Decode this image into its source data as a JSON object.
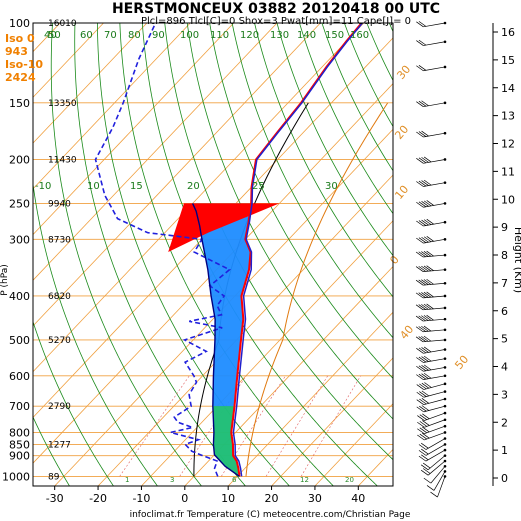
{
  "header": {
    "title": "HERSTMONCEUX 03882 20120418 00 UTC",
    "subtitle": "Plcl=896 Tlcl[C]=0 Shox=3 Pwat[mm]=11 Cape[J]= 0"
  },
  "iso_labels": [
    "Iso 0",
    "943",
    "Iso-10",
    "2424"
  ],
  "footer": "infoclimat.fr Temperature (C) meteocentre.com/Christian Page",
  "yaxis_left_label": "P (hPa)",
  "yaxis_right_label": "Height (Km)",
  "colors": {
    "temperature": "#ff0000",
    "virtual_temperature": "#2020cc",
    "dewpoint": "#2020dd",
    "parcel": "#000080",
    "negative_area": "#1e8cff",
    "positive_area": "#ff0000",
    "isotherm": "#f0a040",
    "dry_adiabat": "#1a8a1a",
    "isobar": "#f0a040"
  },
  "chart_data": {
    "type": "line",
    "diagram": "skew-T log-P",
    "xlim": [
      -35,
      48
    ],
    "ylim_pressure": [
      1050,
      100
    ],
    "x_ticks": [
      "-30",
      "-20",
      "-10",
      "0",
      "10",
      "20",
      "30",
      "40"
    ],
    "pressure_ticks": [
      "100",
      "150",
      "200",
      "250",
      "300",
      "400",
      "500",
      "600",
      "700",
      "800",
      "850",
      "900",
      "1000"
    ],
    "pressure_values": [
      100,
      150,
      200,
      250,
      300,
      400,
      500,
      600,
      700,
      800,
      850,
      900,
      1000
    ],
    "geopotential_labels": [
      {
        "p": 100,
        "label": "16010"
      },
      {
        "p": 150,
        "label": "13350"
      },
      {
        "p": 200,
        "label": "11430"
      },
      {
        "p": 250,
        "label": "9940"
      },
      {
        "p": 300,
        "label": "8730"
      },
      {
        "p": 400,
        "label": "6820"
      },
      {
        "p": 500,
        "label": "5270"
      },
      {
        "p": 700,
        "label": "2790"
      },
      {
        "p": 850,
        "label": "1277"
      },
      {
        "p": 1000,
        "label": "89"
      }
    ],
    "height_ticks_km": [
      "0",
      "1",
      "2",
      "3",
      "4",
      "5",
      "6",
      "7",
      "8",
      "9",
      "10",
      "11",
      "12",
      "13",
      "14",
      "15",
      "16"
    ],
    "dry_adiabat_labels": [
      "-10",
      "10",
      "15",
      "20",
      "25",
      "30",
      "40",
      "50",
      "60",
      "70",
      "80",
      "90",
      "100",
      "110",
      "120",
      "130",
      "140",
      "150",
      "160"
    ],
    "orange_labels": [
      "0",
      "10",
      "20",
      "30",
      "40",
      "50"
    ],
    "mixing_labels": [
      "1",
      "3",
      "6",
      "12",
      "20"
    ],
    "series": [
      {
        "name": "temperature",
        "points": [
          [
            1000,
            10.5
          ],
          [
            960,
            8.5
          ],
          [
            925,
            6.5
          ],
          [
            900,
            4.5
          ],
          [
            850,
            2.0
          ],
          [
            800,
            -1.0
          ],
          [
            700,
            -6.0
          ],
          [
            600,
            -12.0
          ],
          [
            500,
            -19.0
          ],
          [
            450,
            -23.0
          ],
          [
            400,
            -28.5
          ],
          [
            350,
            -32.5
          ],
          [
            320,
            -36.0
          ],
          [
            300,
            -40.0
          ],
          [
            275,
            -43.0
          ],
          [
            250,
            -46.5
          ],
          [
            230,
            -50.0
          ],
          [
            200,
            -55.0
          ],
          [
            175,
            -56.0
          ],
          [
            150,
            -57.0
          ],
          [
            125,
            -59.0
          ],
          [
            110,
            -60.0
          ],
          [
            100,
            -60.5
          ]
        ]
      },
      {
        "name": "virtual_temperature",
        "points": [
          [
            1000,
            11.0
          ],
          [
            960,
            9.0
          ],
          [
            925,
            7.0
          ],
          [
            900,
            5.0
          ],
          [
            850,
            2.5
          ],
          [
            800,
            -0.5
          ],
          [
            700,
            -5.5
          ],
          [
            600,
            -11.5
          ],
          [
            500,
            -18.5
          ],
          [
            450,
            -22.5
          ],
          [
            400,
            -28.0
          ],
          [
            350,
            -32.0
          ],
          [
            320,
            -35.8
          ],
          [
            300,
            -39.8
          ],
          [
            275,
            -42.8
          ],
          [
            250,
            -46.3
          ],
          [
            230,
            -49.8
          ],
          [
            200,
            -54.8
          ],
          [
            175,
            -55.8
          ],
          [
            150,
            -56.8
          ],
          [
            125,
            -58.8
          ],
          [
            110,
            -59.8
          ],
          [
            100,
            -60.3
          ]
        ]
      },
      {
        "name": "dewpoint",
        "points": [
          [
            1000,
            5.5
          ],
          [
            960,
            3.0
          ],
          [
            925,
            2.0
          ],
          [
            900,
            -2.5
          ],
          [
            880,
            -6.0
          ],
          [
            850,
            -9.0
          ],
          [
            830,
            -7.0
          ],
          [
            800,
            -15.0
          ],
          [
            780,
            -11.0
          ],
          [
            760,
            -15.5
          ],
          [
            740,
            -17.5
          ],
          [
            700,
            -16.0
          ],
          [
            660,
            -19.0
          ],
          [
            620,
            -20.0
          ],
          [
            600,
            -22.0
          ],
          [
            560,
            -27.0
          ],
          [
            530,
            -24.5
          ],
          [
            500,
            -32.0
          ],
          [
            470,
            -26.0
          ],
          [
            455,
            -35.0
          ],
          [
            440,
            -29.0
          ],
          [
            420,
            -32.0
          ],
          [
            400,
            -32.5
          ],
          [
            380,
            -38.0
          ],
          [
            350,
            -37.0
          ],
          [
            320,
            -49.0
          ],
          [
            300,
            -50.0
          ],
          [
            290,
            -64.0
          ],
          [
            270,
            -74.0
          ],
          [
            240,
            -82.0
          ],
          [
            200,
            -92.0
          ],
          [
            170,
            -95.0
          ],
          [
            150,
            -98.0
          ],
          [
            120,
            -104.0
          ],
          [
            100,
            -108.0
          ]
        ]
      },
      {
        "name": "parcel",
        "points": [
          [
            1000,
            10.5
          ],
          [
            950,
            5.0
          ],
          [
            896,
            0.0
          ],
          [
            850,
            -2.5
          ],
          [
            800,
            -5.0
          ],
          [
            700,
            -11.0
          ],
          [
            600,
            -17.5
          ],
          [
            500,
            -25.0
          ],
          [
            450,
            -29.5
          ],
          [
            400,
            -35.5
          ],
          [
            350,
            -42.0
          ],
          [
            300,
            -50.0
          ],
          [
            280,
            -53.5
          ],
          [
            260,
            -57.5
          ],
          [
            250,
            -60.0
          ]
        ]
      }
    ],
    "winds": [
      {
        "p": 1000,
        "speed_kt": 5,
        "dir": 200
      },
      {
        "p": 975,
        "speed_kt": 10,
        "dir": 210
      },
      {
        "p": 950,
        "speed_kt": 10,
        "dir": 220
      },
      {
        "p": 925,
        "speed_kt": 15,
        "dir": 230
      },
      {
        "p": 900,
        "speed_kt": 15,
        "dir": 230
      },
      {
        "p": 875,
        "speed_kt": 15,
        "dir": 240
      },
      {
        "p": 850,
        "speed_kt": 20,
        "dir": 240
      },
      {
        "p": 825,
        "speed_kt": 20,
        "dir": 240
      },
      {
        "p": 800,
        "speed_kt": 25,
        "dir": 250
      },
      {
        "p": 775,
        "speed_kt": 25,
        "dir": 250
      },
      {
        "p": 750,
        "speed_kt": 25,
        "dir": 250
      },
      {
        "p": 725,
        "speed_kt": 30,
        "dir": 250
      },
      {
        "p": 700,
        "speed_kt": 30,
        "dir": 255
      },
      {
        "p": 675,
        "speed_kt": 30,
        "dir": 255
      },
      {
        "p": 650,
        "speed_kt": 30,
        "dir": 255
      },
      {
        "p": 625,
        "speed_kt": 35,
        "dir": 255
      },
      {
        "p": 600,
        "speed_kt": 35,
        "dir": 260
      },
      {
        "p": 575,
        "speed_kt": 35,
        "dir": 260
      },
      {
        "p": 550,
        "speed_kt": 40,
        "dir": 260
      },
      {
        "p": 525,
        "speed_kt": 40,
        "dir": 260
      },
      {
        "p": 500,
        "speed_kt": 40,
        "dir": 265
      },
      {
        "p": 475,
        "speed_kt": 40,
        "dir": 265
      },
      {
        "p": 450,
        "speed_kt": 45,
        "dir": 265
      },
      {
        "p": 425,
        "speed_kt": 45,
        "dir": 265
      },
      {
        "p": 400,
        "speed_kt": 50,
        "dir": 265
      },
      {
        "p": 375,
        "speed_kt": 50,
        "dir": 265
      },
      {
        "p": 350,
        "speed_kt": 55,
        "dir": 265
      },
      {
        "p": 325,
        "speed_kt": 55,
        "dir": 265
      },
      {
        "p": 300,
        "speed_kt": 55,
        "dir": 260
      },
      {
        "p": 275,
        "speed_kt": 50,
        "dir": 260
      },
      {
        "p": 250,
        "speed_kt": 45,
        "dir": 260
      },
      {
        "p": 225,
        "speed_kt": 40,
        "dir": 260
      },
      {
        "p": 200,
        "speed_kt": 35,
        "dir": 260
      },
      {
        "p": 175,
        "speed_kt": 30,
        "dir": 260
      },
      {
        "p": 150,
        "speed_kt": 25,
        "dir": 260
      },
      {
        "p": 125,
        "speed_kt": 20,
        "dir": 260
      },
      {
        "p": 110,
        "speed_kt": 15,
        "dir": 260
      },
      {
        "p": 100,
        "speed_kt": 15,
        "dir": 260
      }
    ]
  }
}
